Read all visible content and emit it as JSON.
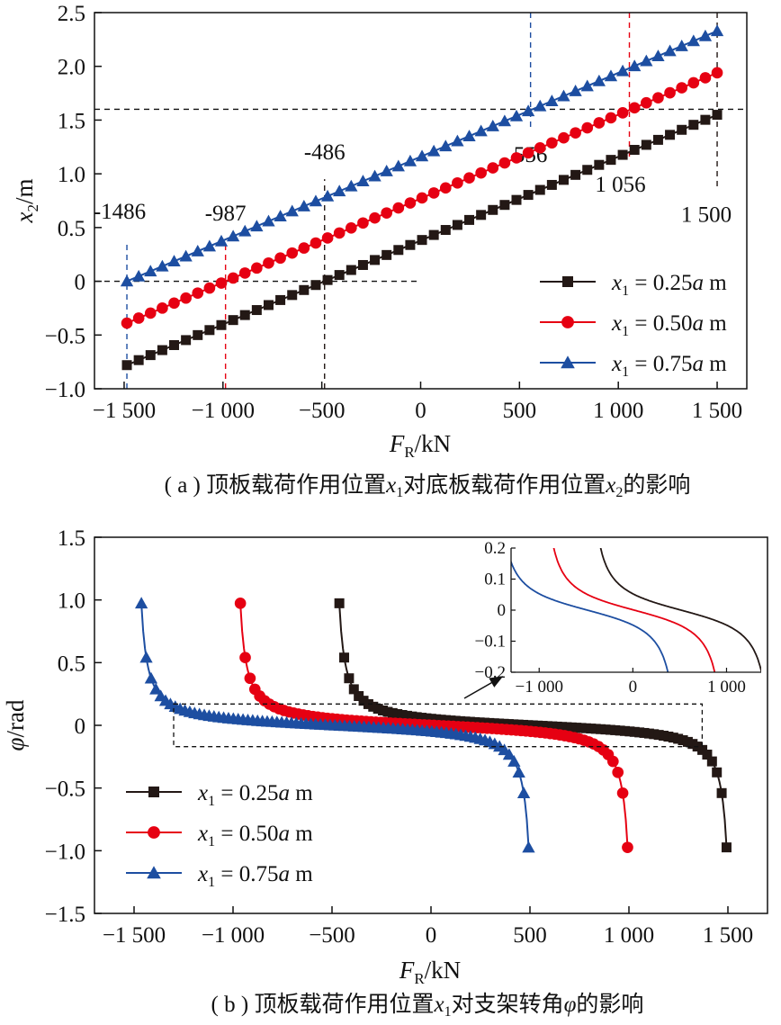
{
  "chart_data": [
    {
      "type": "line",
      "xlabel": "F",
      "xlabel_sub": "R",
      "xlabel_unit": "/kN",
      "ylabel": "x",
      "ylabel_sub": "2",
      "ylabel_unit": "/m",
      "xlim": [
        -1650,
        1650
      ],
      "ylim": [
        -1.0,
        2.5
      ],
      "xticks": [
        {
          "v": -1500,
          "label": "−1 500"
        },
        {
          "v": -1000,
          "label": "−1 000"
        },
        {
          "v": -500,
          "label": "−500"
        },
        {
          "v": 0,
          "label": "0"
        },
        {
          "v": 500,
          "label": "500"
        },
        {
          "v": 1000,
          "label": "1 000"
        },
        {
          "v": 1500,
          "label": "1 500"
        }
      ],
      "yticks": [
        {
          "v": 2.5,
          "label": "2.5"
        },
        {
          "v": 2.0,
          "label": "2.0"
        },
        {
          "v": 1.5,
          "label": "1.5"
        },
        {
          "v": 1.0,
          "label": "1.0"
        },
        {
          "v": 0.5,
          "label": "0.5"
        },
        {
          "v": 0,
          "label": "0"
        },
        {
          "v": -0.5,
          "label": "−0.5"
        },
        {
          "v": -1.0,
          "label": "−1.0"
        }
      ],
      "legend_position": "bottom-right",
      "series": [
        {
          "name_italic": "x",
          "name_sub": "1",
          "name_eq": " = 0.25",
          "name_a": "a",
          "name_unit": " m",
          "color": "#231815",
          "marker": "square",
          "x_start": -1486,
          "x_end": 1500,
          "slope": 0.00078,
          "intercept": 0.379
        },
        {
          "name_italic": "x",
          "name_sub": "1",
          "name_eq": " = 0.50",
          "name_a": "a",
          "name_unit": " m",
          "color": "#e60012",
          "marker": "circle",
          "x_start": -1486,
          "x_end": 1500,
          "slope": 0.00078,
          "intercept": 0.77
        },
        {
          "name_italic": "x",
          "name_sub": "1",
          "name_eq": " = 0.75",
          "name_a": "a",
          "name_unit": " m",
          "color": "#1d4ea1",
          "marker": "triangle",
          "x_start": -1486,
          "x_end": 1500,
          "slope": 0.00078,
          "intercept": 1.159
        }
      ],
      "annotations": [
        {
          "text": "-1486",
          "x": -1486,
          "color": "#1d4ea1"
        },
        {
          "text": "-987",
          "x": -987,
          "color": "#e60012"
        },
        {
          "text": "-486",
          "x": -486,
          "color": "#231815"
        },
        {
          "text": "556",
          "x": 556,
          "color": "#1d4ea1"
        },
        {
          "text": "1 056",
          "x": 1056,
          "color": "#e60012"
        },
        {
          "text": "1 500",
          "x": 1500,
          "color": "#231815"
        }
      ],
      "ref_lines": {
        "y_high": 1.6,
        "y_zero": 0
      },
      "caption": {
        "pre": "( a ) 顶板载荷作用位置",
        "v1": "x",
        "s1": "1",
        "mid": "对底板载荷作用位置",
        "v2": "x",
        "s2": "2",
        "post": "的影响"
      }
    },
    {
      "type": "line",
      "xlabel": "F",
      "xlabel_sub": "R",
      "xlabel_unit": "/kN",
      "ylabel": "φ",
      "ylabel_unit": "/rad",
      "xlim": [
        -1700,
        1700
      ],
      "ylim": [
        -1.5,
        1.5
      ],
      "xticks": [
        {
          "v": -1500,
          "label": "−1 500"
        },
        {
          "v": -1000,
          "label": "−1 000"
        },
        {
          "v": -500,
          "label": "−500"
        },
        {
          "v": 0,
          "label": "0"
        },
        {
          "v": 500,
          "label": "500"
        },
        {
          "v": 1000,
          "label": "1 000"
        },
        {
          "v": 1500,
          "label": "1 500"
        }
      ],
      "yticks": [
        {
          "v": 1.5,
          "label": "1.5"
        },
        {
          "v": 1.0,
          "label": "1.0"
        },
        {
          "v": 0.5,
          "label": "0.5"
        },
        {
          "v": 0,
          "label": "0"
        },
        {
          "v": -0.5,
          "label": "−0.5"
        },
        {
          "v": -1.0,
          "label": "−1.0"
        },
        {
          "v": -1.5,
          "label": "−1.5"
        }
      ],
      "legend_position": "bottom-left",
      "series": [
        {
          "name_italic": "x",
          "name_sub": "1",
          "name_eq": " = 0.25",
          "name_a": "a",
          "name_unit": " m",
          "color": "#231815",
          "marker": "square",
          "center": 515,
          "half_width": 978
        },
        {
          "name_italic": "x",
          "name_sub": "1",
          "name_eq": " = 0.50",
          "name_a": "a",
          "name_unit": " m",
          "color": "#e60012",
          "marker": "circle",
          "center": 15,
          "half_width": 978
        },
        {
          "name_italic": "x",
          "name_sub": "1",
          "name_eq": " = 0.75",
          "name_a": "a",
          "name_unit": " m",
          "color": "#1d4ea1",
          "marker": "triangle",
          "center": -485,
          "half_width": 978
        }
      ],
      "zoom_box": {
        "x": [
          -1300,
          1370
        ],
        "y": [
          -0.17,
          0.17
        ]
      },
      "inset": {
        "xlim": [
          -1300,
          1370
        ],
        "ylim": [
          -0.2,
          0.2
        ],
        "xticks": [
          {
            "v": -1000,
            "label": "−1 000"
          },
          {
            "v": 0,
            "label": "0"
          },
          {
            "v": 1000,
            "label": "1 000"
          }
        ],
        "yticks": [
          {
            "v": 0.2,
            "label": "0.2"
          },
          {
            "v": 0.1,
            "label": "0.1"
          },
          {
            "v": 0,
            "label": "0"
          },
          {
            "v": -0.1,
            "label": "−0.1"
          },
          {
            "v": -0.2,
            "label": "−0.2"
          }
        ]
      },
      "caption": {
        "pre": "( b ) 顶板载荷作用位置",
        "v1": "x",
        "s1": "1",
        "mid": "对支架转角",
        "v2": "φ",
        "post": "的影响"
      }
    }
  ]
}
